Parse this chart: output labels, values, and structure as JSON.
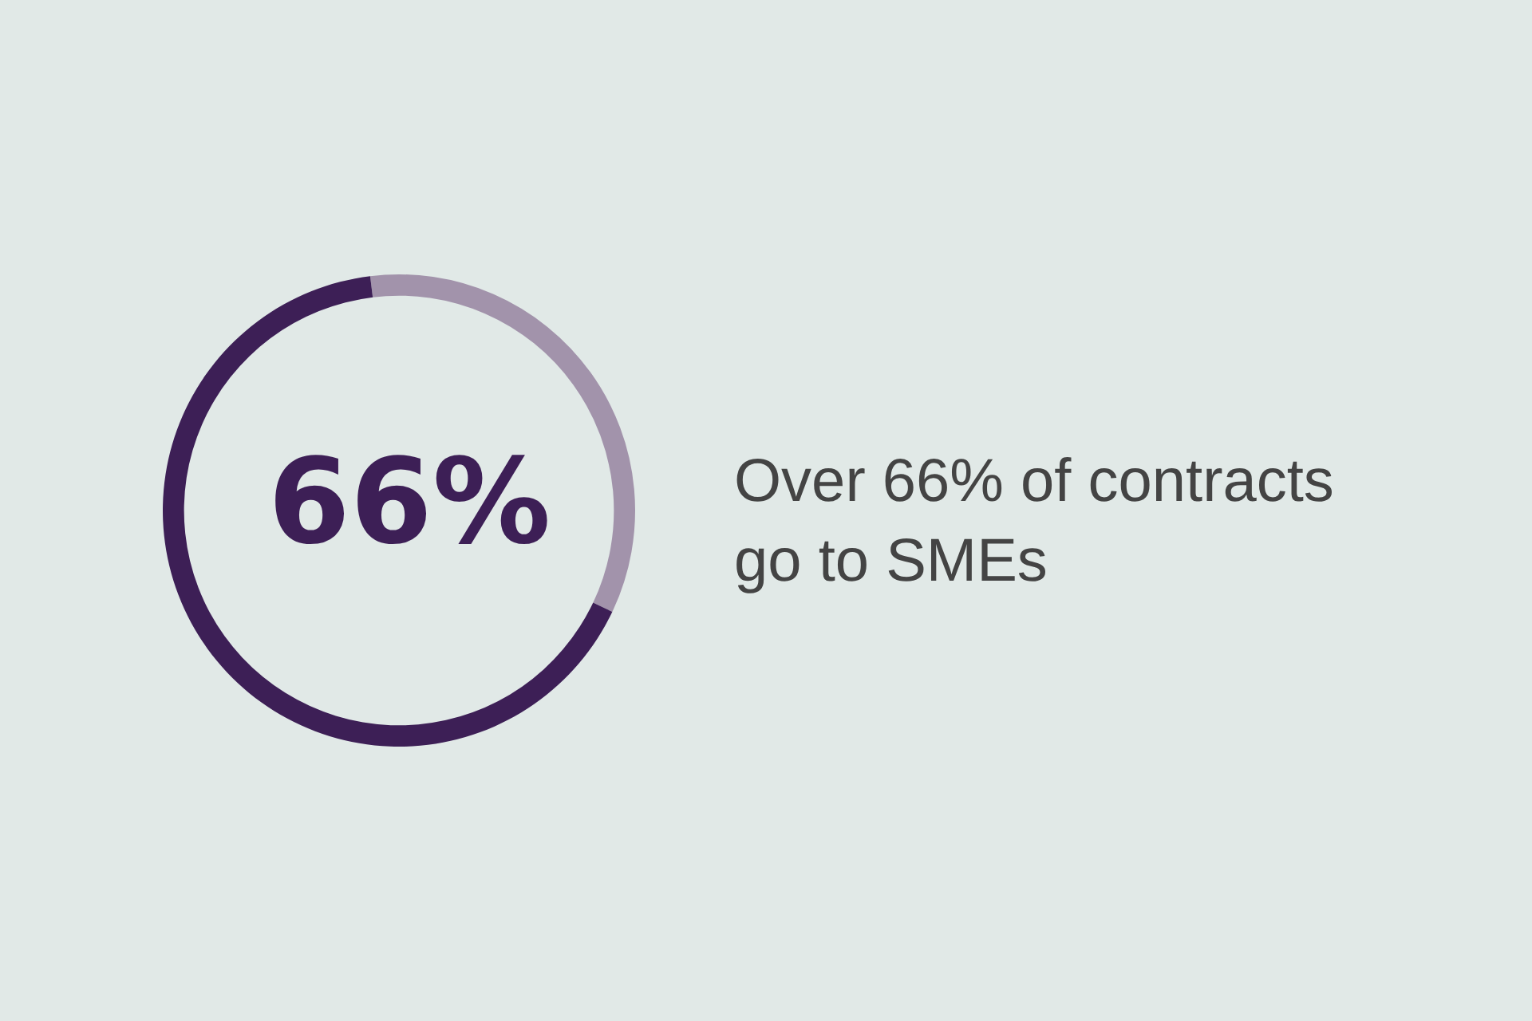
{
  "chart_data": {
    "type": "donut",
    "title": "Over 66% of contracts go to SMEs",
    "annotations": [
      "66%"
    ],
    "categories": [
      null,
      null
    ],
    "values": [
      34,
      66
    ],
    "colors": [
      "#a293ab",
      "#3d1f56"
    ]
  }
}
